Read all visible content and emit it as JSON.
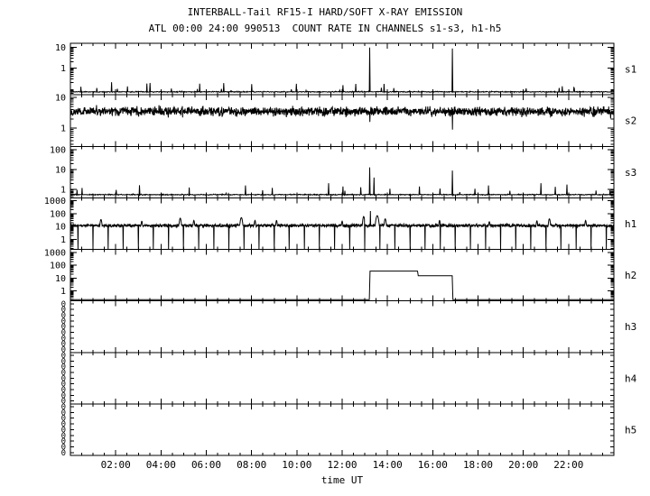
{
  "colors": {
    "foreground": "#000000",
    "background": "#ffffff"
  },
  "chart_data": {
    "type": "line",
    "title": "INTERBALL-Tail RF15-I HARD/SOFT X-RAY EMISSION",
    "subtitle": "ATL 00:00 24:00 990513  COUNT RATE IN CHANNELS s1-s3, h1-h5",
    "xlabel": "time UT",
    "x_range_hours": [
      0,
      24
    ],
    "x_ticks": [
      {
        "h": 2,
        "label": "02:00"
      },
      {
        "h": 4,
        "label": "04:00"
      },
      {
        "h": 6,
        "label": "06:00"
      },
      {
        "h": 8,
        "label": "08:00"
      },
      {
        "h": 10,
        "label": "10:00"
      },
      {
        "h": 12,
        "label": "12:00"
      },
      {
        "h": 14,
        "label": "14:00"
      },
      {
        "h": 16,
        "label": "16:00"
      },
      {
        "h": 18,
        "label": "18:00"
      },
      {
        "h": 20,
        "label": "20:00"
      },
      {
        "h": 22,
        "label": "22:00"
      }
    ],
    "panels": [
      {
        "label": "s1",
        "kind": "floor",
        "scale": "log",
        "y_min": 0.05,
        "y_max": 16,
        "y_ticks": [
          10,
          1
        ],
        "baseline": 0.07,
        "blip": 0.5,
        "blip_rate": 0.02,
        "seed": 11,
        "samples": 1400,
        "spikes": [
          {
            "t": 13.22,
            "peak": 10
          },
          {
            "t": 16.87,
            "peak": 9
          }
        ]
      },
      {
        "label": "s2",
        "kind": "band",
        "scale": "log",
        "y_min": 0.26,
        "y_max": 12,
        "y_ticks": [
          10,
          1
        ],
        "baseline": 3.5,
        "sigma": 0.12,
        "seed": 22,
        "samples": 2000,
        "down_spikes": [
          {
            "t": 13.22,
            "floor": 1.6
          },
          {
            "t": 16.87,
            "floor": 0.9
          }
        ]
      },
      {
        "label": "s3",
        "kind": "floor",
        "scale": "log",
        "y_min": 0.38,
        "y_max": 150,
        "y_ticks": [
          100,
          10,
          1
        ],
        "baseline": 0.55,
        "blip": 0.6,
        "blip_rate": 0.02,
        "seed": 33,
        "samples": 1400,
        "spikes": [
          {
            "t": 13.22,
            "peak": 13
          },
          {
            "t": 13.4,
            "peak": 4
          },
          {
            "t": 16.87,
            "peak": 9
          }
        ]
      },
      {
        "label": "h1",
        "kind": "band",
        "scale": "log",
        "y_min": 0.17,
        "y_max": 1700,
        "y_ticks": [
          1000,
          100,
          10,
          1
        ],
        "baseline": 12,
        "sigma": 0.1,
        "seed": 44,
        "samples": 2000,
        "dropout_interval": 0.6667,
        "dropout_start": 0.33,
        "spikes": [
          {
            "t": 13.25,
            "peak": 160
          }
        ],
        "flares": [
          {
            "t": 1.35,
            "peak": 35,
            "w": 0.05
          },
          {
            "t": 3.15,
            "peak": 26,
            "w": 0.04
          },
          {
            "t": 4.85,
            "peak": 45,
            "w": 0.05
          },
          {
            "t": 5.45,
            "peak": 30,
            "w": 0.04
          },
          {
            "t": 7.55,
            "peak": 50,
            "w": 0.06
          },
          {
            "t": 8.15,
            "peak": 30,
            "w": 0.04
          },
          {
            "t": 9.1,
            "peak": 30,
            "w": 0.04
          },
          {
            "t": 12.0,
            "peak": 26,
            "w": 0.04
          },
          {
            "t": 12.95,
            "peak": 60,
            "w": 0.05
          },
          {
            "t": 13.55,
            "peak": 70,
            "w": 0.07
          },
          {
            "t": 13.9,
            "peak": 40,
            "w": 0.05
          },
          {
            "t": 16.3,
            "peak": 30,
            "w": 0.04
          },
          {
            "t": 18.5,
            "peak": 24,
            "w": 0.04
          },
          {
            "t": 20.6,
            "peak": 28,
            "w": 0.04
          },
          {
            "t": 21.15,
            "peak": 40,
            "w": 0.05
          },
          {
            "t": 22.75,
            "peak": 30,
            "w": 0.04
          }
        ]
      },
      {
        "label": "h2",
        "kind": "steps",
        "scale": "log",
        "y_min": 0.17,
        "y_max": 1700,
        "y_ticks": [
          1000,
          100,
          10,
          1
        ],
        "baseline": 0.21,
        "seed": 55,
        "samples": 800,
        "segments": [
          {
            "t0": 13.22,
            "t1": 15.35,
            "level": 35
          },
          {
            "t0": 15.35,
            "t1": 16.87,
            "level": 15
          }
        ]
      },
      {
        "label": "h3",
        "kind": "empty",
        "zero_ticks": 9,
        "zero_label": "0"
      },
      {
        "label": "h4",
        "kind": "empty",
        "zero_ticks": 9,
        "zero_label": "0"
      },
      {
        "label": "h5",
        "kind": "empty",
        "zero_ticks": 9,
        "zero_label": "0"
      }
    ]
  }
}
